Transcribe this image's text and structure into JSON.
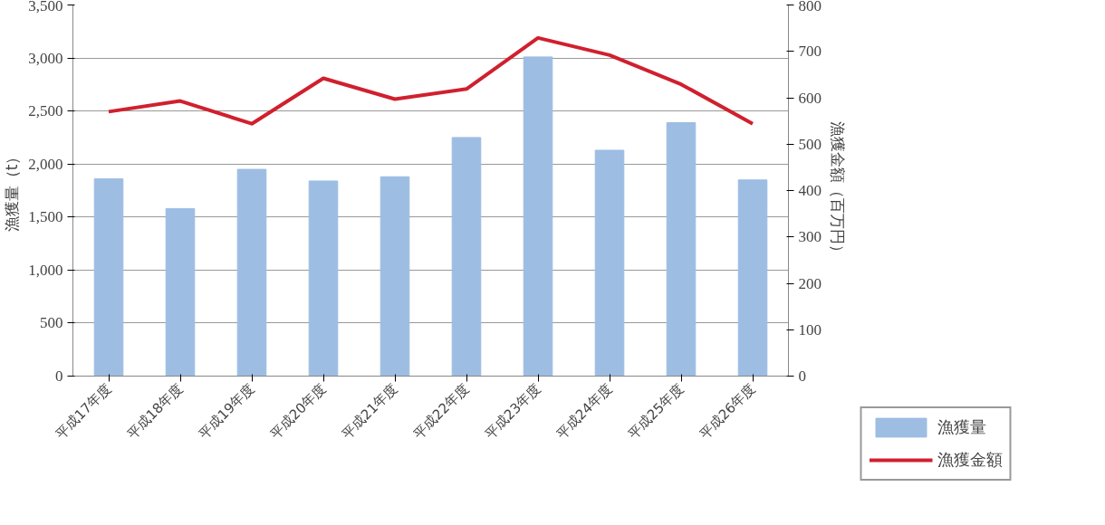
{
  "chart_data": {
    "type": "bar",
    "ylabel": "漁獲量（t）",
    "y2label": "漁獲金額（百万円）",
    "categories": [
      "平成17年度",
      "平成18年度",
      "平成19年度",
      "平成20年度",
      "平成21年度",
      "平成22年度",
      "平成23年度",
      "平成24年度",
      "平成25年度",
      "平成26年度"
    ],
    "series": [
      {
        "name": "漁獲量",
        "color": "#9dbde3",
        "values": [
          1860,
          1580,
          1950,
          1840,
          1880,
          2250,
          3010,
          2130,
          2390,
          1850
        ]
      },
      {
        "name": "漁獲金額",
        "type": "line",
        "axis": "y2",
        "color": "#d0202e",
        "values": [
          570,
          593,
          544,
          642,
          597,
          619,
          729,
          692,
          629,
          544
        ]
      }
    ],
    "ylim": [
      0,
      3500
    ],
    "yticks": [
      0,
      {
        "value": 500,
        "label": "500"
      },
      {
        "value": 1000,
        "label": "1,000"
      },
      {
        "value": 1500,
        "label": "1,500"
      },
      {
        "value": 2000,
        "label": "2,000"
      },
      {
        "value": 2500,
        "label": "2,500"
      },
      {
        "value": 3000,
        "label": "3,000"
      },
      {
        "value": 3500,
        "label": "3,500"
      }
    ],
    "y2lim": [
      0,
      800
    ],
    "y2ticks": [
      0,
      100,
      200,
      300,
      400,
      500,
      600,
      700,
      800
    ],
    "grid": "y",
    "legend": "bottom right",
    "marker": "none",
    "line_style": "solid"
  }
}
